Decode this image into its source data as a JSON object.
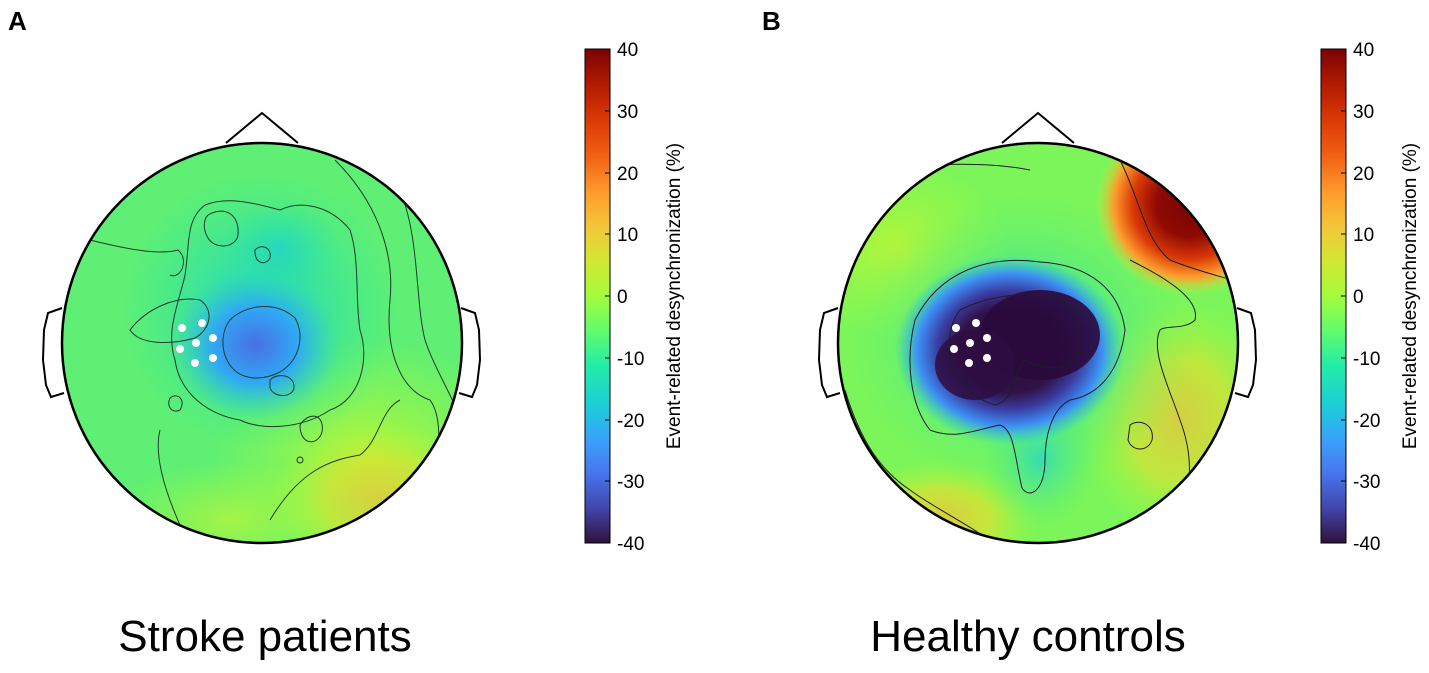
{
  "panels": [
    {
      "letter": "A",
      "caption": "Stroke patients",
      "colorbar": {
        "label": "Event-related desynchronization (%)",
        "ticks": [
          "40",
          "30",
          "20",
          "10",
          "0",
          "-10",
          "-20",
          "-30",
          "-40"
        ]
      }
    },
    {
      "letter": "B",
      "caption": "Healthy controls",
      "colorbar": {
        "label": "Event-related desynchronization (%)",
        "ticks": [
          "40",
          "30",
          "20",
          "10",
          "0",
          "-10",
          "-20",
          "-30",
          "-40"
        ]
      }
    }
  ],
  "colors": {
    "low": "#2b0c3e",
    "mid": "#34d17c",
    "high": "#800000",
    "electrode": "#ffffff"
  }
}
